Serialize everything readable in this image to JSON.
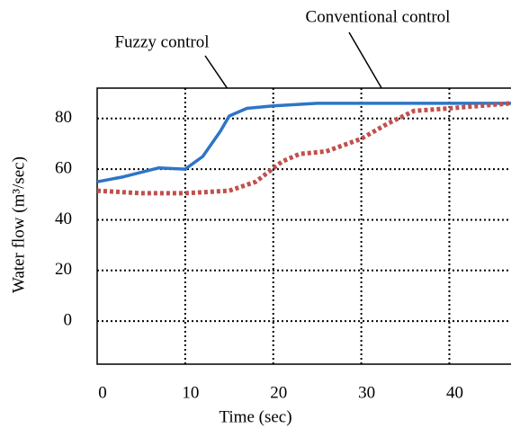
{
  "chart_data": {
    "type": "line",
    "xlabel": "Time (sec)",
    "ylabel": "Water flow (m³/sec)",
    "annotations": [
      "Fuzzy control",
      "Conventional control"
    ],
    "xlim": [
      0,
      47
    ],
    "xticks": [
      0,
      10,
      20,
      30,
      40
    ],
    "ylim": [
      -17,
      92
    ],
    "yticks": [
      0,
      20,
      40,
      60,
      80
    ],
    "grid": true,
    "series": [
      {
        "name": "Fuzzy control",
        "color": "#2e75c6",
        "x": [
          0,
          3,
          7,
          10,
          12,
          14,
          15,
          17,
          20,
          25,
          30,
          47
        ],
        "values": [
          55,
          57,
          60.5,
          60,
          65,
          75,
          81,
          84,
          85,
          86,
          86,
          86
        ]
      },
      {
        "name": "Conventional control",
        "color": "#c0504d",
        "x": [
          0,
          5,
          10,
          15,
          18,
          21,
          23,
          26,
          30,
          33,
          36,
          40,
          47
        ],
        "values": [
          51.5,
          50.5,
          50.5,
          51.5,
          55,
          63,
          66,
          67,
          72,
          78,
          83,
          84,
          86
        ]
      }
    ]
  }
}
